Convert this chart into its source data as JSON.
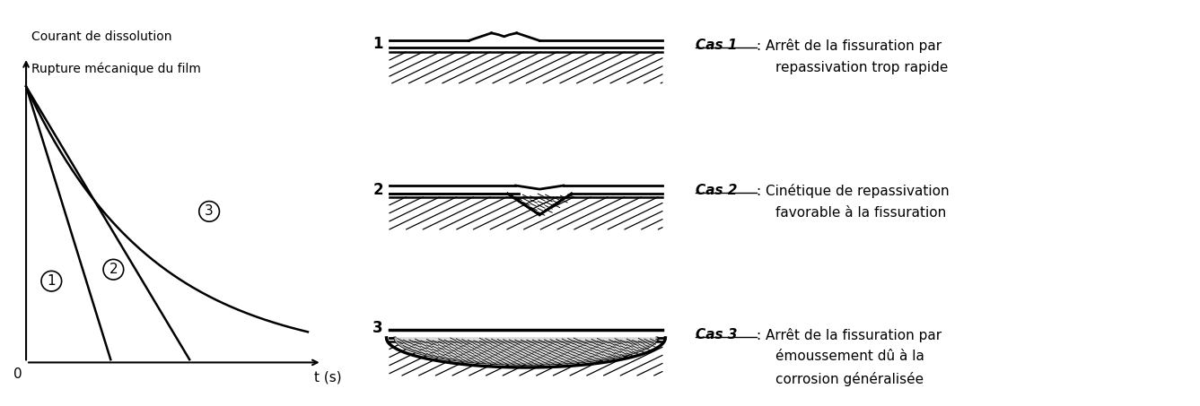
{
  "background_color": "#ffffff",
  "ylabel_line1": "Courant de dissolution",
  "ylabel_line2": "Rupture mécanique du film",
  "xlabel": "t (s)",
  "cas1_title": "Cas 1",
  "cas1_text1": ": Arrêt de la fissuration par",
  "cas1_text2": "repassivation trop rapide",
  "cas2_title": "Cas 2",
  "cas2_text1": ": Cinétique de repassivation",
  "cas2_text2": "favorable à la fissuration",
  "cas3_title": "Cas 3",
  "cas3_text1": ": Arrêt de la fissuration par",
  "cas3_text2": "émoussement dû à la",
  "cas3_text3": "corrosion généralisée"
}
